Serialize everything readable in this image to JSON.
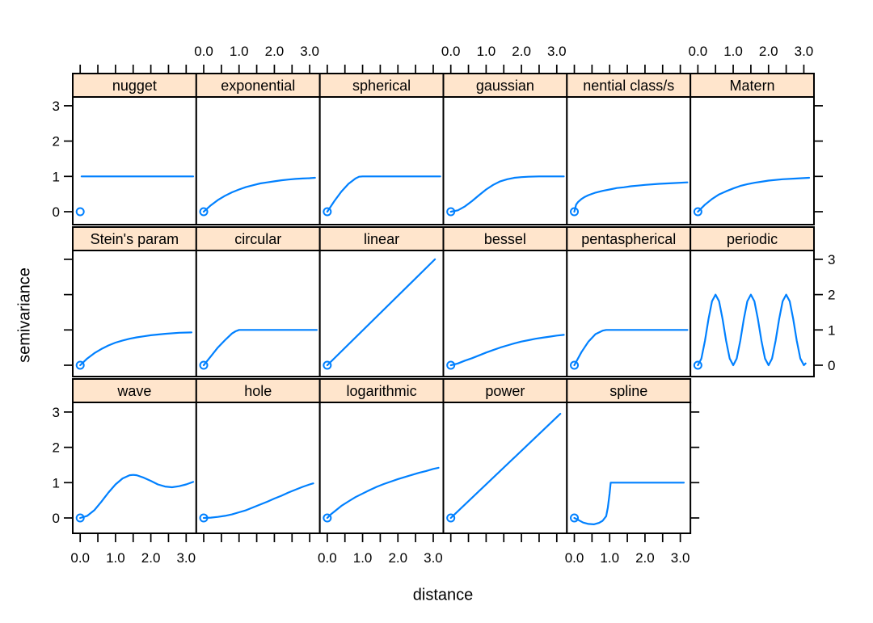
{
  "chart_data": {
    "type": "line",
    "variant": "trellis-multipanel",
    "title": "",
    "xlabel": "distance",
    "ylabel": "semivariance",
    "x_tick_labels": [
      "0.0",
      "1.0",
      "2.0",
      "3.0"
    ],
    "x_tick_values": [
      0,
      1,
      2,
      3
    ],
    "x_minor_step": 0.5,
    "y_tick_labels": [
      "0",
      "1",
      "2",
      "3"
    ],
    "y_tick_values": [
      0,
      1,
      2,
      3
    ],
    "xlim": [
      -0.2,
      3.3
    ],
    "ylim": [
      -0.35,
      3.3
    ],
    "grid": "off",
    "legend": "none",
    "layout": {
      "rows": 3,
      "cols": 6
    },
    "axis_alternation": {
      "top_labeled_columns": [
        2,
        4,
        6
      ],
      "bottom_labeled_columns": [
        1,
        3,
        5
      ],
      "left_labeled_rows": [
        1,
        3
      ],
      "right_labeled_rows": [
        2
      ]
    },
    "origin_marker": "open-circle",
    "origin_point": [
      0,
      0
    ],
    "colors": {
      "line": "#0080ff",
      "strip_bg": "#ffe5cc",
      "border": "#000000",
      "text": "#000000",
      "background": "#ffffff"
    },
    "panels": [
      {
        "label": "nugget",
        "row": 0,
        "col": 0,
        "points": [
          [
            0.04,
            1
          ],
          [
            3.2,
            1
          ]
        ]
      },
      {
        "label": "exponential",
        "row": 0,
        "col": 1,
        "points": [
          [
            0,
            0
          ],
          [
            0.2,
            0.18
          ],
          [
            0.4,
            0.33
          ],
          [
            0.6,
            0.45
          ],
          [
            0.8,
            0.55
          ],
          [
            1,
            0.63
          ],
          [
            1.2,
            0.7
          ],
          [
            1.4,
            0.75
          ],
          [
            1.6,
            0.8
          ],
          [
            1.8,
            0.83
          ],
          [
            2,
            0.86
          ],
          [
            2.2,
            0.89
          ],
          [
            2.4,
            0.91
          ],
          [
            2.6,
            0.93
          ],
          [
            2.8,
            0.94
          ],
          [
            3,
            0.95
          ],
          [
            3.15,
            0.96
          ]
        ]
      },
      {
        "label": "spherical",
        "row": 0,
        "col": 2,
        "points": [
          [
            0,
            0
          ],
          [
            0.2,
            0.3
          ],
          [
            0.4,
            0.57
          ],
          [
            0.6,
            0.79
          ],
          [
            0.8,
            0.94
          ],
          [
            0.9,
            0.99
          ],
          [
            1,
            1
          ],
          [
            3.2,
            1
          ]
        ]
      },
      {
        "label": "gaussian",
        "row": 0,
        "col": 3,
        "points": [
          [
            0,
            0
          ],
          [
            0.2,
            0.04
          ],
          [
            0.4,
            0.15
          ],
          [
            0.6,
            0.3
          ],
          [
            0.8,
            0.47
          ],
          [
            1,
            0.63
          ],
          [
            1.2,
            0.76
          ],
          [
            1.4,
            0.86
          ],
          [
            1.6,
            0.92
          ],
          [
            1.8,
            0.96
          ],
          [
            2,
            0.98
          ],
          [
            2.2,
            0.99
          ],
          [
            2.5,
            1
          ],
          [
            3.2,
            1
          ]
        ]
      },
      {
        "label": "nential class/s",
        "row": 0,
        "col": 4,
        "points": [
          [
            0,
            0
          ],
          [
            0.05,
            0.2
          ],
          [
            0.1,
            0.27
          ],
          [
            0.2,
            0.36
          ],
          [
            0.3,
            0.42
          ],
          [
            0.4,
            0.47
          ],
          [
            0.6,
            0.54
          ],
          [
            0.8,
            0.59
          ],
          [
            1,
            0.63
          ],
          [
            1.2,
            0.67
          ],
          [
            1.4,
            0.69
          ],
          [
            1.6,
            0.72
          ],
          [
            1.8,
            0.74
          ],
          [
            2,
            0.76
          ],
          [
            2.4,
            0.79
          ],
          [
            2.8,
            0.81
          ],
          [
            3.2,
            0.83
          ]
        ]
      },
      {
        "label": "Matern",
        "row": 0,
        "col": 5,
        "points": [
          [
            0,
            0
          ],
          [
            0.2,
            0.2
          ],
          [
            0.4,
            0.36
          ],
          [
            0.6,
            0.49
          ],
          [
            0.8,
            0.58
          ],
          [
            1,
            0.66
          ],
          [
            1.2,
            0.73
          ],
          [
            1.4,
            0.78
          ],
          [
            1.6,
            0.82
          ],
          [
            1.8,
            0.85
          ],
          [
            2,
            0.88
          ],
          [
            2.4,
            0.92
          ],
          [
            2.8,
            0.94
          ],
          [
            3.15,
            0.96
          ]
        ]
      },
      {
        "label": "Stein's param",
        "row": 1,
        "col": 0,
        "points": [
          [
            0,
            0
          ],
          [
            0.2,
            0.19
          ],
          [
            0.4,
            0.34
          ],
          [
            0.6,
            0.46
          ],
          [
            0.8,
            0.56
          ],
          [
            1,
            0.64
          ],
          [
            1.2,
            0.7
          ],
          [
            1.4,
            0.75
          ],
          [
            1.6,
            0.79
          ],
          [
            1.8,
            0.82
          ],
          [
            2,
            0.85
          ],
          [
            2.4,
            0.89
          ],
          [
            2.8,
            0.92
          ],
          [
            3.15,
            0.93
          ]
        ]
      },
      {
        "label": "circular",
        "row": 1,
        "col": 1,
        "points": [
          [
            0,
            0
          ],
          [
            0.2,
            0.25
          ],
          [
            0.4,
            0.5
          ],
          [
            0.6,
            0.71
          ],
          [
            0.8,
            0.9
          ],
          [
            0.9,
            0.96
          ],
          [
            1,
            1
          ],
          [
            3.2,
            1
          ]
        ]
      },
      {
        "label": "linear",
        "row": 1,
        "col": 2,
        "points": [
          [
            0,
            0
          ],
          [
            3.05,
            3
          ]
        ]
      },
      {
        "label": "bessel",
        "row": 1,
        "col": 3,
        "points": [
          [
            0,
            0
          ],
          [
            0.2,
            0.05
          ],
          [
            0.4,
            0.13
          ],
          [
            0.6,
            0.2
          ],
          [
            0.8,
            0.28
          ],
          [
            1,
            0.36
          ],
          [
            1.2,
            0.43
          ],
          [
            1.4,
            0.5
          ],
          [
            1.6,
            0.56
          ],
          [
            1.8,
            0.62
          ],
          [
            2,
            0.67
          ],
          [
            2.2,
            0.71
          ],
          [
            2.4,
            0.75
          ],
          [
            2.6,
            0.78
          ],
          [
            2.8,
            0.81
          ],
          [
            3,
            0.84
          ],
          [
            3.2,
            0.86
          ]
        ]
      },
      {
        "label": "pentaspherical",
        "row": 1,
        "col": 4,
        "points": [
          [
            0,
            0
          ],
          [
            0.2,
            0.37
          ],
          [
            0.4,
            0.67
          ],
          [
            0.6,
            0.88
          ],
          [
            0.8,
            0.98
          ],
          [
            0.9,
            1
          ],
          [
            1,
            1
          ],
          [
            3.2,
            1
          ]
        ]
      },
      {
        "label": "periodic",
        "row": 1,
        "col": 5,
        "points": [
          [
            0,
            0
          ],
          [
            0.1,
            0.19
          ],
          [
            0.2,
            0.69
          ],
          [
            0.3,
            1.31
          ],
          [
            0.4,
            1.81
          ],
          [
            0.5,
            2
          ],
          [
            0.6,
            1.81
          ],
          [
            0.7,
            1.31
          ],
          [
            0.8,
            0.69
          ],
          [
            0.9,
            0.19
          ],
          [
            1,
            0
          ],
          [
            1.1,
            0.19
          ],
          [
            1.2,
            0.69
          ],
          [
            1.3,
            1.31
          ],
          [
            1.4,
            1.81
          ],
          [
            1.5,
            2
          ],
          [
            1.6,
            1.81
          ],
          [
            1.7,
            1.31
          ],
          [
            1.8,
            0.69
          ],
          [
            1.9,
            0.19
          ],
          [
            2,
            0
          ],
          [
            2.1,
            0.19
          ],
          [
            2.2,
            0.69
          ],
          [
            2.3,
            1.31
          ],
          [
            2.4,
            1.81
          ],
          [
            2.5,
            2
          ],
          [
            2.6,
            1.81
          ],
          [
            2.7,
            1.31
          ],
          [
            2.8,
            0.69
          ],
          [
            2.9,
            0.19
          ],
          [
            3,
            0
          ],
          [
            3.05,
            0.05
          ]
        ]
      },
      {
        "label": "wave",
        "row": 2,
        "col": 0,
        "points": [
          [
            0,
            0
          ],
          [
            0.2,
            0.06
          ],
          [
            0.4,
            0.22
          ],
          [
            0.6,
            0.46
          ],
          [
            0.8,
            0.72
          ],
          [
            1,
            0.95
          ],
          [
            1.2,
            1.12
          ],
          [
            1.4,
            1.21
          ],
          [
            1.5,
            1.22
          ],
          [
            1.6,
            1.21
          ],
          [
            1.8,
            1.14
          ],
          [
            2,
            1.05
          ],
          [
            2.2,
            0.95
          ],
          [
            2.4,
            0.89
          ],
          [
            2.6,
            0.87
          ],
          [
            2.8,
            0.9
          ],
          [
            3,
            0.95
          ],
          [
            3.2,
            1.02
          ]
        ]
      },
      {
        "label": "hole",
        "row": 2,
        "col": 1,
        "points": [
          [
            0,
            0
          ],
          [
            0.2,
            0.01
          ],
          [
            0.4,
            0.03
          ],
          [
            0.6,
            0.06
          ],
          [
            0.8,
            0.1
          ],
          [
            1,
            0.16
          ],
          [
            1.2,
            0.22
          ],
          [
            1.4,
            0.3
          ],
          [
            1.6,
            0.38
          ],
          [
            1.8,
            0.46
          ],
          [
            2,
            0.55
          ],
          [
            2.2,
            0.63
          ],
          [
            2.4,
            0.72
          ],
          [
            2.6,
            0.8
          ],
          [
            2.8,
            0.88
          ],
          [
            3,
            0.95
          ],
          [
            3.1,
            0.98
          ]
        ]
      },
      {
        "label": "logarithmic",
        "row": 2,
        "col": 2,
        "points": [
          [
            0,
            0
          ],
          [
            0.05,
            0.05
          ],
          [
            0.1,
            0.1
          ],
          [
            0.2,
            0.18
          ],
          [
            0.4,
            0.34
          ],
          [
            0.6,
            0.47
          ],
          [
            0.8,
            0.59
          ],
          [
            1,
            0.69
          ],
          [
            1.2,
            0.79
          ],
          [
            1.4,
            0.88
          ],
          [
            1.6,
            0.96
          ],
          [
            1.8,
            1.03
          ],
          [
            2,
            1.1
          ],
          [
            2.2,
            1.16
          ],
          [
            2.4,
            1.22
          ],
          [
            2.6,
            1.28
          ],
          [
            2.8,
            1.33
          ],
          [
            3,
            1.39
          ],
          [
            3.15,
            1.42
          ]
        ]
      },
      {
        "label": "power",
        "row": 2,
        "col": 3,
        "points": [
          [
            0,
            0
          ],
          [
            3.1,
            2.95
          ]
        ]
      },
      {
        "label": "spline",
        "row": 2,
        "col": 4,
        "points": [
          [
            0,
            0
          ],
          [
            0.1,
            -0.05
          ],
          [
            0.25,
            -0.13
          ],
          [
            0.4,
            -0.17
          ],
          [
            0.55,
            -0.18
          ],
          [
            0.7,
            -0.14
          ],
          [
            0.8,
            -0.08
          ],
          [
            0.9,
            0.05
          ],
          [
            0.95,
            0.3
          ],
          [
            1,
            0.7
          ],
          [
            1.03,
            1
          ],
          [
            3.1,
            1
          ]
        ]
      }
    ]
  }
}
